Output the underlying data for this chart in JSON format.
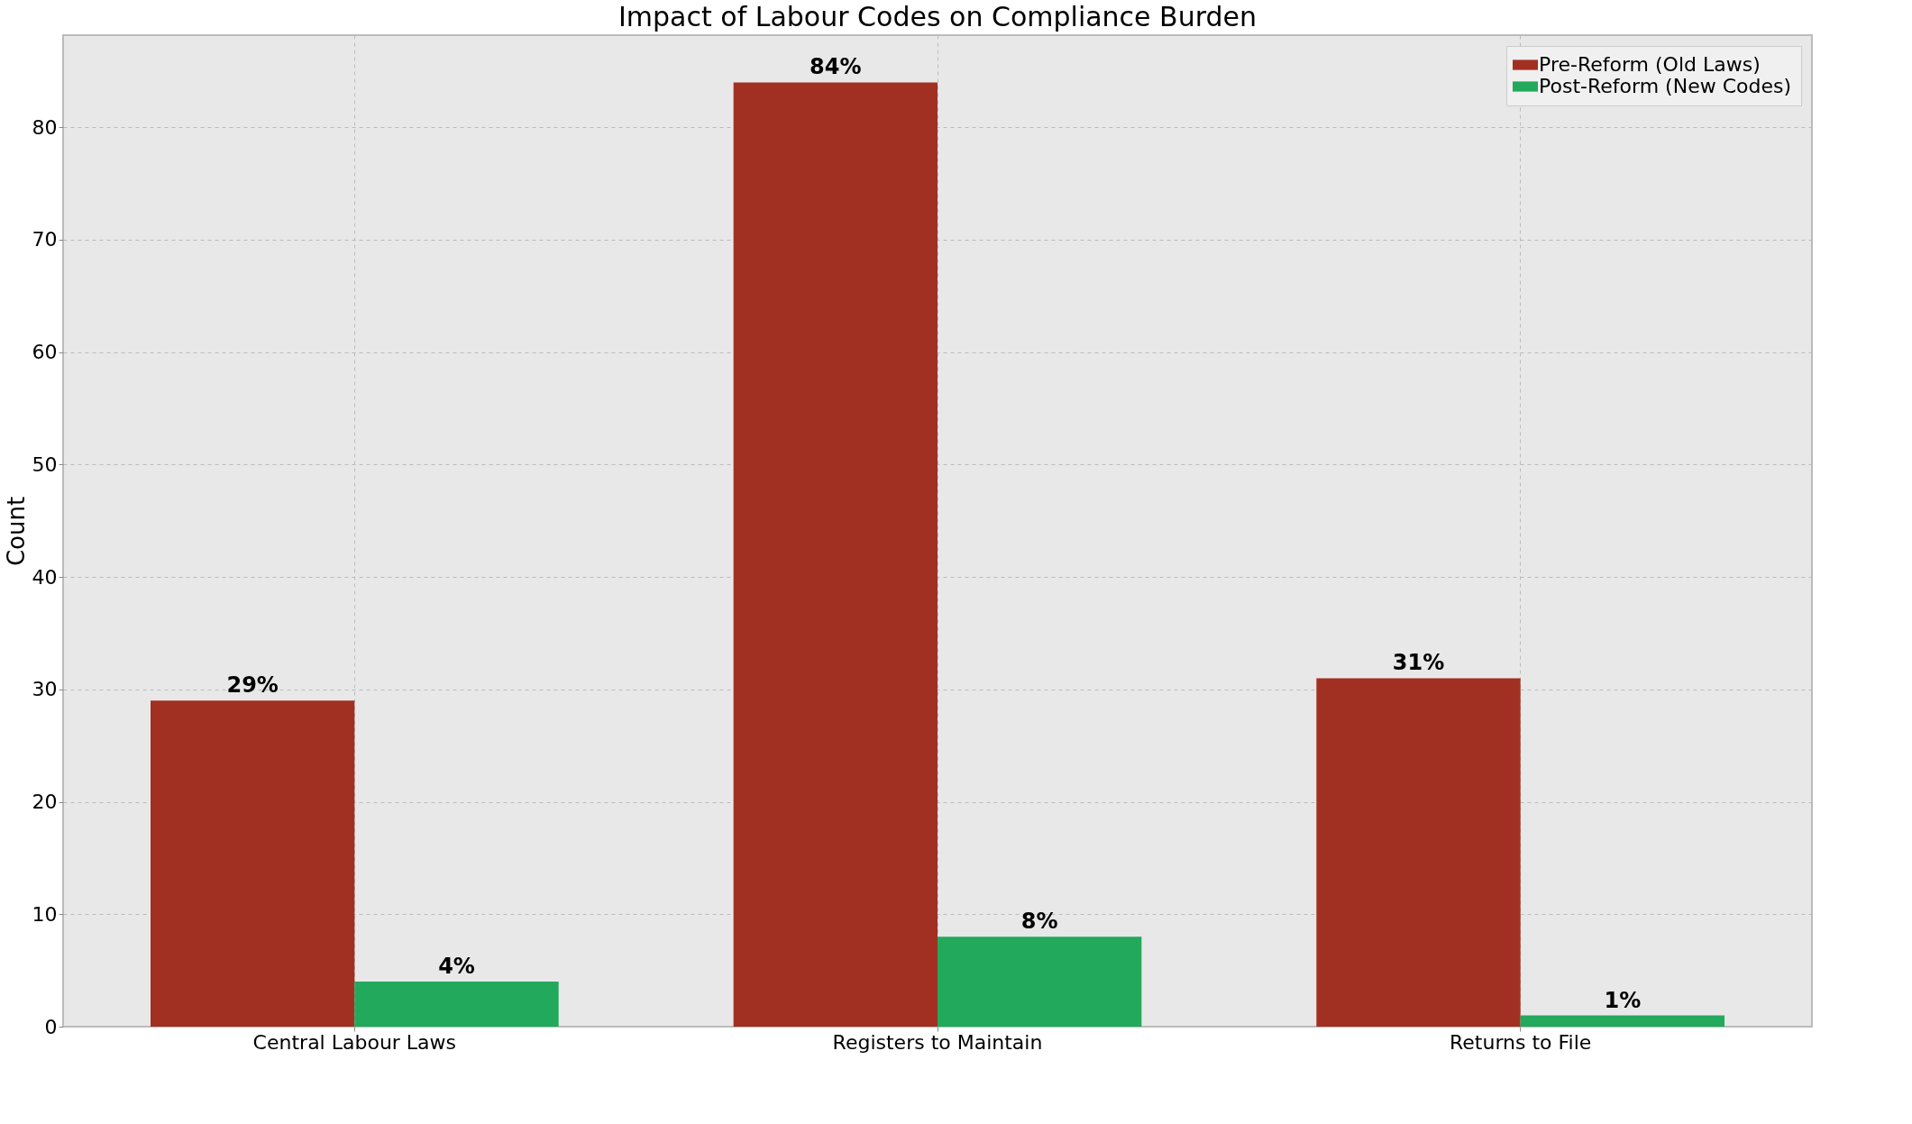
{
  "chart_data": {
    "type": "bar",
    "title": "Impact of Labour Codes on Compliance Burden",
    "ylabel": "Count",
    "categories": [
      "Central Labour Laws",
      "Registers to Maintain",
      "Returns to File"
    ],
    "series": [
      {
        "name": "Pre-Reform (Old Laws)",
        "color": "#a23022",
        "values": [
          29,
          84,
          31
        ],
        "value_labels": [
          "29%",
          "84%",
          "31%"
        ]
      },
      {
        "name": "Post-Reform (New Codes)",
        "color": "#22a95b",
        "values": [
          4,
          8,
          1
        ],
        "value_labels": [
          "4%",
          "8%",
          "1%"
        ]
      }
    ],
    "ylim": [
      0,
      88.2
    ],
    "yticks": [
      0,
      10,
      20,
      30,
      40,
      50,
      60,
      70,
      80
    ],
    "grid": true,
    "legend": "top right"
  }
}
